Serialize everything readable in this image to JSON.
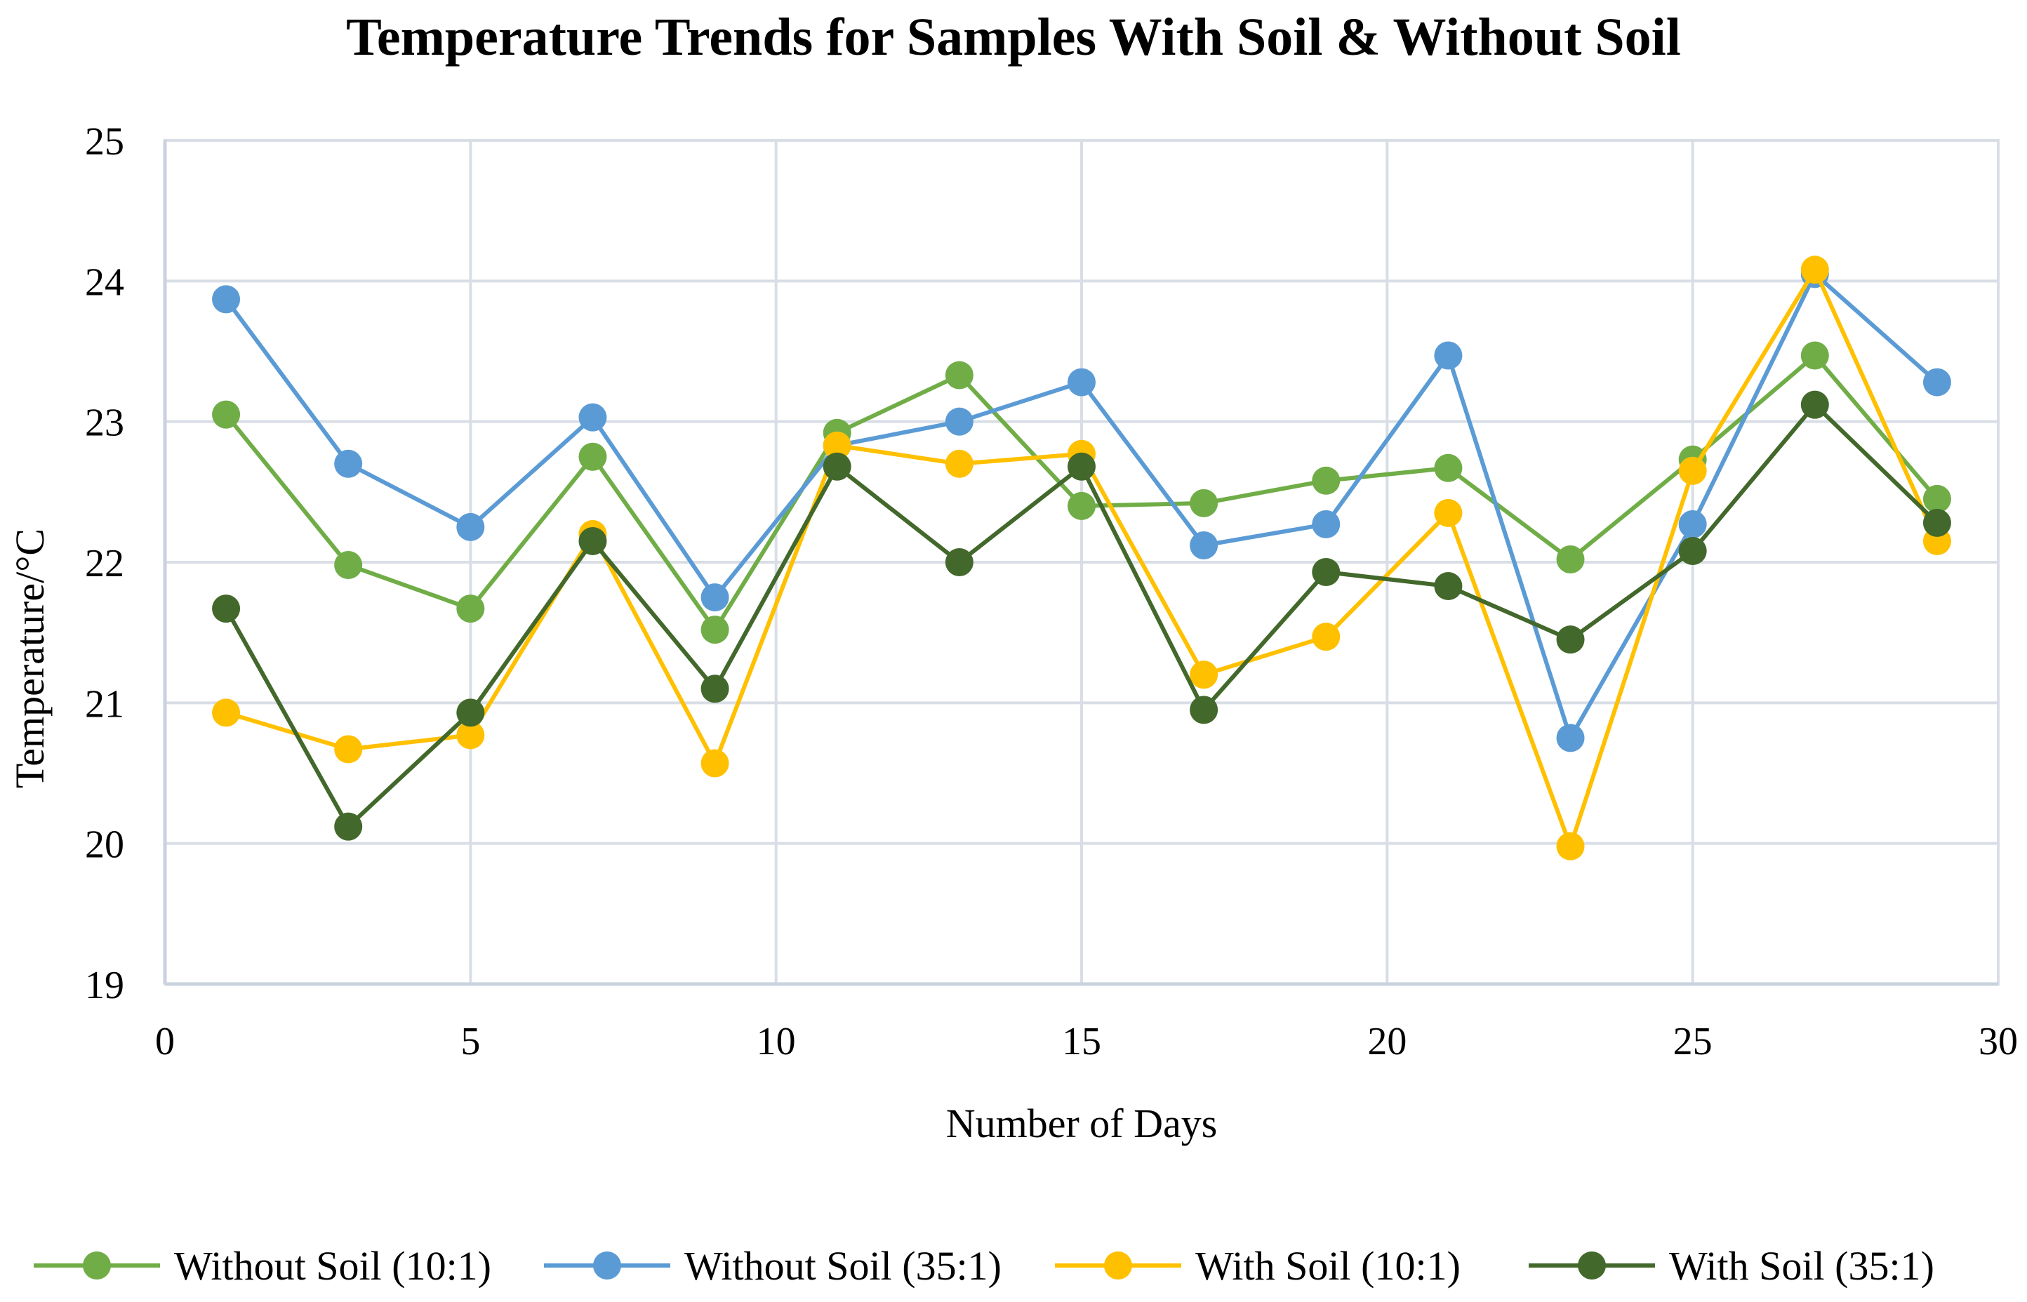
{
  "chart_data": {
    "type": "line",
    "title": "Temperature Trends for Samples With Soil & Without Soil",
    "xlabel": "Number of Days",
    "ylabel": "Temperature/°C",
    "xlim": [
      0,
      30
    ],
    "ylim": [
      19,
      25
    ],
    "xticks": [
      0,
      5,
      10,
      15,
      20,
      25,
      30
    ],
    "yticks": [
      19,
      20,
      21,
      22,
      23,
      24,
      25
    ],
    "grid": true,
    "legend_position": "bottom",
    "x": [
      1,
      3,
      5,
      7,
      9,
      11,
      13,
      15,
      17,
      19,
      21,
      23,
      25,
      27,
      29
    ],
    "series": [
      {
        "name": "Without Soil (10:1)",
        "color": "#70AD47",
        "values": [
          23.05,
          21.98,
          21.67,
          22.75,
          21.52,
          22.92,
          23.33,
          22.4,
          22.42,
          22.58,
          22.67,
          22.02,
          22.73,
          23.47,
          22.45
        ]
      },
      {
        "name": "Without Soil (35:1)",
        "color": "#5B9BD5",
        "values": [
          23.87,
          22.7,
          22.25,
          23.03,
          21.75,
          22.83,
          23.0,
          23.28,
          22.12,
          22.27,
          23.47,
          20.75,
          22.27,
          24.05,
          23.28
        ]
      },
      {
        "name": "With Soil (10:1)",
        "color": "#FFC000",
        "values": [
          20.93,
          20.67,
          20.77,
          22.2,
          20.57,
          22.83,
          22.7,
          22.77,
          21.2,
          21.47,
          22.35,
          19.98,
          22.65,
          24.08,
          22.15
        ]
      },
      {
        "name": "With Soil (35:1)",
        "color": "#43682B",
        "values": [
          21.67,
          20.12,
          20.93,
          22.15,
          21.1,
          22.68,
          22.0,
          22.68,
          20.95,
          21.93,
          21.83,
          21.45,
          22.08,
          23.12,
          22.28
        ]
      }
    ]
  },
  "styles": {
    "grid_color": "#D9DEE6",
    "axis_color": "#C9D2DE",
    "text_color": "#000000"
  }
}
